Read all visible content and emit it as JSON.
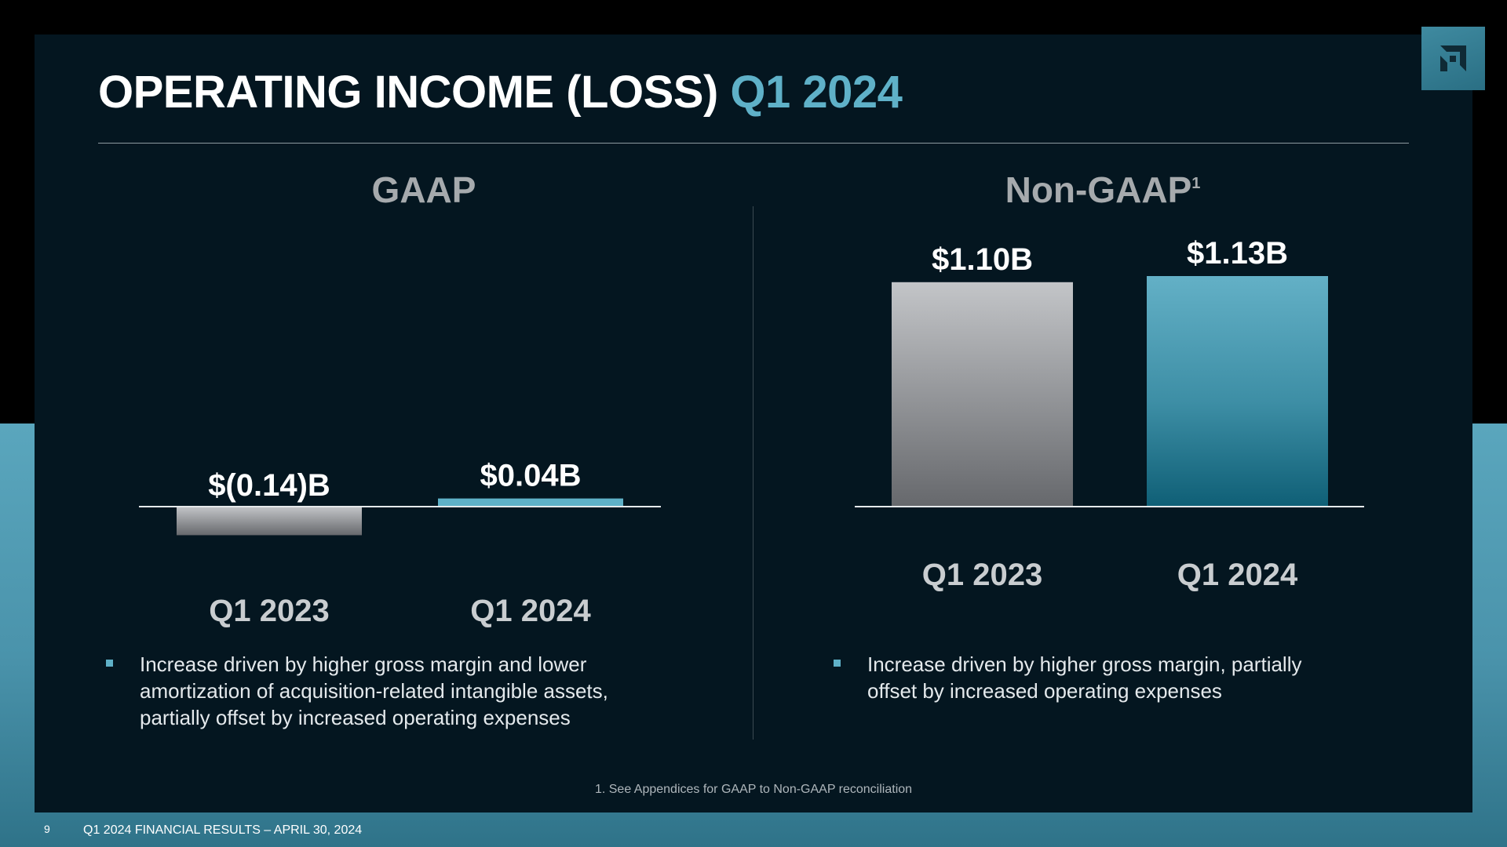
{
  "title": {
    "main": "OPERATING INCOME (LOSS)",
    "accent": "Q1 2024"
  },
  "colors": {
    "accent": "#5fb1c8",
    "gray_bar_top": "#c3c5c8",
    "gray_bar_bottom": "#66686c",
    "teal_bar_top": "#63b0c6",
    "teal_bar_bottom": "#0f5f76"
  },
  "logo_icon": "amd-arrow-logo-icon",
  "chart_data": [
    {
      "type": "bar",
      "title": "GAAP",
      "title_sup": "",
      "unit": "$B",
      "categories": [
        "Q1 2023",
        "Q1 2024"
      ],
      "values": [
        -0.14,
        0.04
      ],
      "labels": [
        "$(0.14)B",
        "$0.04B"
      ],
      "ylim": [
        -0.2,
        1.3
      ],
      "grid": false,
      "legend": "none"
    },
    {
      "type": "bar",
      "title": "Non-GAAP",
      "title_sup": "1",
      "unit": "$B",
      "categories": [
        "Q1 2023",
        "Q1 2024"
      ],
      "values": [
        1.1,
        1.13
      ],
      "labels": [
        "$1.10B",
        "$1.13B"
      ],
      "ylim": [
        0,
        1.3
      ],
      "grid": false,
      "legend": "none"
    }
  ],
  "bullets": {
    "gaap": [
      "Increase driven by higher gross margin and lower",
      "amortization of acquisition-related intangible assets,",
      "partially offset by increased operating expenses"
    ],
    "non_gaap": [
      "Increase driven by higher gross margin, partially",
      "offset by increased operating expenses"
    ]
  },
  "footnote": "1. See Appendices for GAAP to Non-GAAP reconciliation",
  "page_number": "9",
  "footer": "Q1 2024 FINANCIAL RESULTS – APRIL 30, 2024"
}
